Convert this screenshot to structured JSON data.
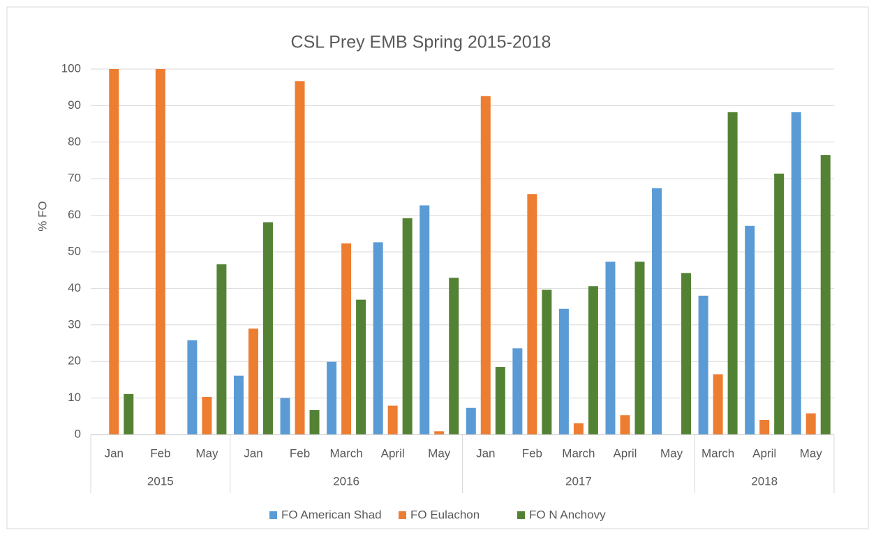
{
  "chart_data": {
    "type": "bar",
    "title": "CSL Prey EMB Spring 2015-2018",
    "y_label": "% FO",
    "groups": [
      {
        "name": "2015",
        "categories": [
          "Jan",
          "Feb",
          "May"
        ]
      },
      {
        "name": "2016",
        "categories": [
          "Jan",
          "Feb",
          "March",
          "April",
          "May"
        ]
      },
      {
        "name": "2017",
        "categories": [
          "Jan",
          "Feb",
          "March",
          "April",
          "May"
        ]
      },
      {
        "name": "2018",
        "categories": [
          "March",
          "April",
          "May"
        ]
      }
    ],
    "series": [
      {
        "name": "FO American Shad",
        "color": "#5b9bd5",
        "values": [
          0,
          0,
          25.8,
          16.1,
          10,
          19.9,
          52.6,
          62.7,
          7.3,
          23.6,
          34.4,
          47.3,
          67.4,
          38,
          57.1,
          88.2
        ]
      },
      {
        "name": "FO Eulachon",
        "color": "#ed7d31",
        "values": [
          100,
          100,
          10.3,
          29,
          96.7,
          52.3,
          7.9,
          0.9,
          92.6,
          65.8,
          3.1,
          5.3,
          0,
          16.5,
          4,
          5.8
        ]
      },
      {
        "name": "FO N Anchovy",
        "color": "#548235",
        "values": [
          11.1,
          0,
          46.6,
          58.1,
          6.7,
          36.9,
          59.2,
          42.9,
          18.5,
          39.6,
          40.6,
          47.3,
          44.2,
          88.2,
          71.4,
          76.5
        ]
      }
    ],
    "ylim": [
      0,
      100
    ],
    "yticks": [
      0,
      10,
      20,
      30,
      40,
      50,
      60,
      70,
      80,
      90,
      100
    ],
    "grid": true,
    "legend": "bottom"
  }
}
